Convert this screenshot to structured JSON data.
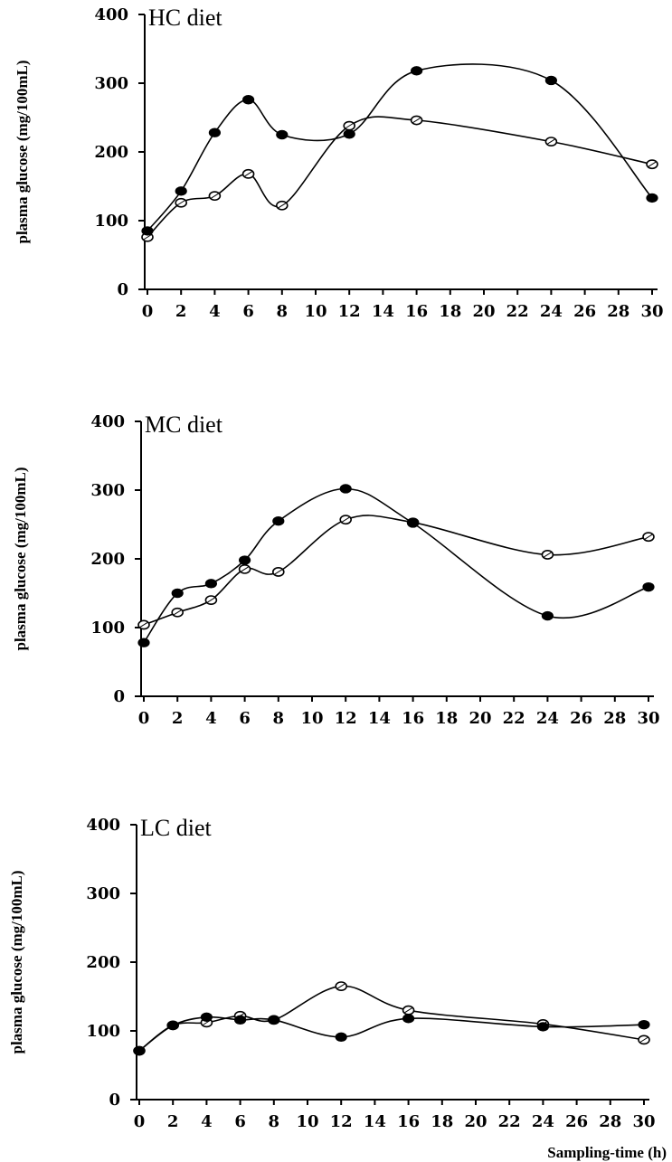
{
  "xlabel": "Sampling-time (h)",
  "chart_data": [
    {
      "type": "line",
      "title": "HC diet",
      "ylabel": "plasma glucose (mg/100mL)",
      "xlabel": "",
      "ylim": [
        0,
        400
      ],
      "yticks": [
        0,
        100,
        200,
        300,
        400
      ],
      "xticks": [
        0,
        2,
        4,
        6,
        8,
        10,
        12,
        14,
        16,
        18,
        20,
        22,
        24,
        26,
        28,
        30
      ],
      "x": [
        0,
        2,
        4,
        6,
        8,
        12,
        16,
        24,
        30
      ],
      "series": [
        {
          "marker": "filled",
          "values": [
            85,
            143,
            228,
            276,
            225,
            226,
            318,
            304,
            133
          ]
        },
        {
          "marker": "open",
          "values": [
            76,
            126,
            136,
            168,
            122,
            238,
            246,
            215,
            182
          ]
        }
      ]
    },
    {
      "type": "line",
      "title": "MC diet",
      "ylabel": "plasma glucose (mg/100mL)",
      "xlabel": "",
      "ylim": [
        0,
        400
      ],
      "yticks": [
        0,
        100,
        200,
        300,
        400
      ],
      "xticks": [
        0,
        2,
        4,
        6,
        8,
        10,
        12,
        14,
        16,
        18,
        20,
        22,
        24,
        26,
        28,
        30
      ],
      "x": [
        0,
        2,
        4,
        6,
        8,
        12,
        16,
        24,
        30
      ],
      "series": [
        {
          "marker": "filled",
          "values": [
            78,
            150,
            164,
            198,
            255,
            302,
            252,
            117,
            159
          ]
        },
        {
          "marker": "open",
          "values": [
            104,
            122,
            140,
            185,
            181,
            257,
            253,
            206,
            232
          ]
        }
      ]
    },
    {
      "type": "line",
      "title": "LC diet",
      "ylabel": "plasma glucose (mg/100mL)",
      "xlabel": "Sampling-time (h)",
      "ylim": [
        0,
        400
      ],
      "yticks": [
        0,
        100,
        200,
        300,
        400
      ],
      "xticks": [
        0,
        2,
        4,
        6,
        8,
        10,
        12,
        14,
        16,
        18,
        20,
        22,
        24,
        26,
        28,
        30
      ],
      "x": [
        0,
        2,
        4,
        6,
        8,
        12,
        16,
        24,
        30
      ],
      "series": [
        {
          "marker": "filled",
          "values": [
            71,
            108,
            120,
            116,
            116,
            91,
            118,
            106,
            109
          ]
        },
        {
          "marker": "open",
          "values": [
            71,
            108,
            112,
            122,
            116,
            165,
            130,
            110,
            87
          ]
        }
      ]
    }
  ]
}
